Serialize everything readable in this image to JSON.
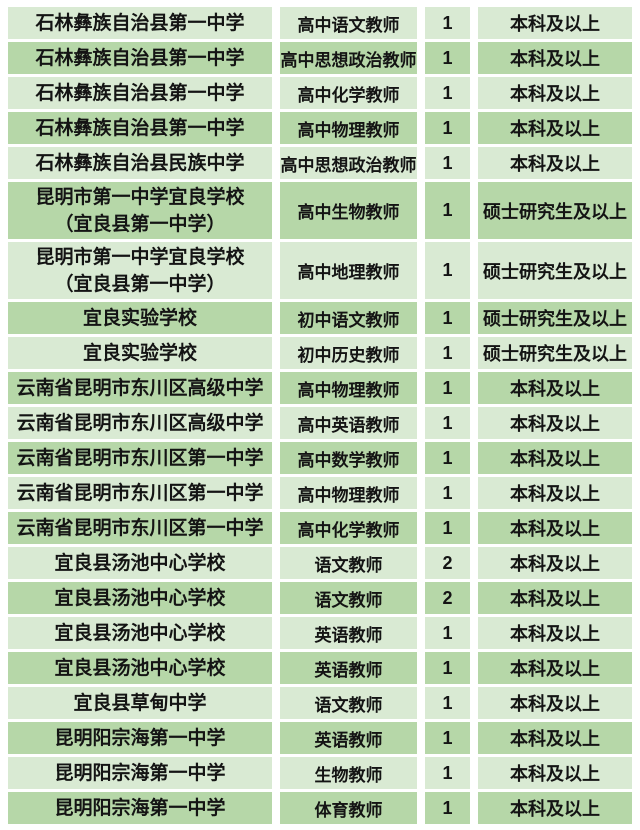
{
  "page": {
    "background": "#ffffff"
  },
  "colors": {
    "row_light": "#d9ead3",
    "row_dark": "#b6d7a8",
    "text": "#141414"
  },
  "table": {
    "rows": [
      {
        "school_lines": [
          "石林彝族自治县第一中学"
        ],
        "position": "高中语文教师",
        "count": "1",
        "education": "本科及以上"
      },
      {
        "school_lines": [
          "石林彝族自治县第一中学"
        ],
        "position": "高中思想政治教师",
        "count": "1",
        "education": "本科及以上"
      },
      {
        "school_lines": [
          "石林彝族自治县第一中学"
        ],
        "position": "高中化学教师",
        "count": "1",
        "education": "本科及以上"
      },
      {
        "school_lines": [
          "石林彝族自治县第一中学"
        ],
        "position": "高中物理教师",
        "count": "1",
        "education": "本科及以上"
      },
      {
        "school_lines": [
          "石林彝族自治县民族中学"
        ],
        "position": "高中思想政治教师",
        "count": "1",
        "education": "本科及以上"
      },
      {
        "school_lines": [
          "昆明市第一中学宜良学校",
          "（宜良县第一中学）"
        ],
        "position": "高中生物教师",
        "count": "1",
        "education": "硕士研究生及以上"
      },
      {
        "school_lines": [
          "昆明市第一中学宜良学校",
          "（宜良县第一中学）"
        ],
        "position": "高中地理教师",
        "count": "1",
        "education": "硕士研究生及以上"
      },
      {
        "school_lines": [
          "宜良实验学校"
        ],
        "position": "初中语文教师",
        "count": "1",
        "education": "硕士研究生及以上"
      },
      {
        "school_lines": [
          "宜良实验学校"
        ],
        "position": "初中历史教师",
        "count": "1",
        "education": "硕士研究生及以上"
      },
      {
        "school_lines": [
          "云南省昆明市东川区高级中学"
        ],
        "position": "高中物理教师",
        "count": "1",
        "education": "本科及以上"
      },
      {
        "school_lines": [
          "云南省昆明市东川区高级中学"
        ],
        "position": "高中英语教师",
        "count": "1",
        "education": "本科及以上"
      },
      {
        "school_lines": [
          "云南省昆明市东川区第一中学"
        ],
        "position": "高中数学教师",
        "count": "1",
        "education": "本科及以上"
      },
      {
        "school_lines": [
          "云南省昆明市东川区第一中学"
        ],
        "position": "高中物理教师",
        "count": "1",
        "education": "本科及以上"
      },
      {
        "school_lines": [
          "云南省昆明市东川区第一中学"
        ],
        "position": "高中化学教师",
        "count": "1",
        "education": "本科及以上"
      },
      {
        "school_lines": [
          "宜良县汤池中心学校"
        ],
        "position": "语文教师",
        "count": "2",
        "education": "本科及以上"
      },
      {
        "school_lines": [
          "宜良县汤池中心学校"
        ],
        "position": "语文教师",
        "count": "2",
        "education": "本科及以上"
      },
      {
        "school_lines": [
          "宜良县汤池中心学校"
        ],
        "position": "英语教师",
        "count": "1",
        "education": "本科及以上"
      },
      {
        "school_lines": [
          "宜良县汤池中心学校"
        ],
        "position": "英语教师",
        "count": "1",
        "education": "本科及以上"
      },
      {
        "school_lines": [
          "宜良县草甸中学"
        ],
        "position": "语文教师",
        "count": "1",
        "education": "本科及以上"
      },
      {
        "school_lines": [
          "昆明阳宗海第一中学"
        ],
        "position": "英语教师",
        "count": "1",
        "education": "本科及以上"
      },
      {
        "school_lines": [
          "昆明阳宗海第一中学"
        ],
        "position": "生物教师",
        "count": "1",
        "education": "本科及以上"
      },
      {
        "school_lines": [
          "昆明阳宗海第一中学"
        ],
        "position": "体育教师",
        "count": "1",
        "education": "本科及以上"
      }
    ]
  }
}
